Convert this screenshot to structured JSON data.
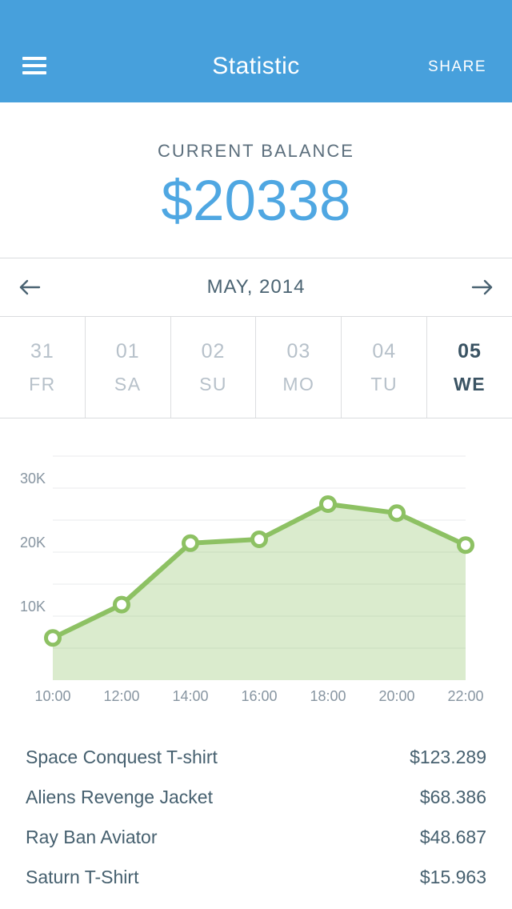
{
  "header": {
    "title": "Statistic",
    "share_label": "SHARE",
    "bg_color": "#47a0dc"
  },
  "balance": {
    "label": "CURRENT BALANCE",
    "amount": "$20338",
    "amount_color": "#4fa7e2"
  },
  "month_nav": {
    "label": "MAY, 2014"
  },
  "days": [
    {
      "num": "31",
      "name": "FR",
      "selected": false
    },
    {
      "num": "01",
      "name": "SA",
      "selected": false
    },
    {
      "num": "02",
      "name": "SU",
      "selected": false
    },
    {
      "num": "03",
      "name": "MO",
      "selected": false
    },
    {
      "num": "04",
      "name": "TU",
      "selected": false
    },
    {
      "num": "05",
      "name": "WE",
      "selected": true
    }
  ],
  "chart_data": {
    "type": "area",
    "x": [
      "10:00",
      "12:00",
      "14:00",
      "16:00",
      "18:00",
      "20:00",
      "22:00"
    ],
    "values_k": [
      6.6,
      11.8,
      21.4,
      22.0,
      27.5,
      26.1,
      21.1
    ],
    "unit": "K (thousand $)",
    "ytick_labels": [
      "10K",
      "20K",
      "30K"
    ],
    "ytick_values_k": [
      10,
      20,
      30
    ],
    "ylim_k": [
      0,
      35
    ],
    "grid_step_k": 5,
    "grid": true,
    "legend": false,
    "line_color": "#8dc163",
    "fill_opacity": 0.32,
    "axis_label_color": "#8795a1",
    "grid_color": "#e9ebec"
  },
  "items": [
    {
      "label": "Space Conquest T-shirt",
      "price": "$123.289"
    },
    {
      "label": "Aliens Revenge Jacket",
      "price": "$68.386"
    },
    {
      "label": "Ray Ban Aviator",
      "price": "$48.687"
    },
    {
      "label": "Saturn T-Shirt",
      "price": "$15.963"
    }
  ]
}
